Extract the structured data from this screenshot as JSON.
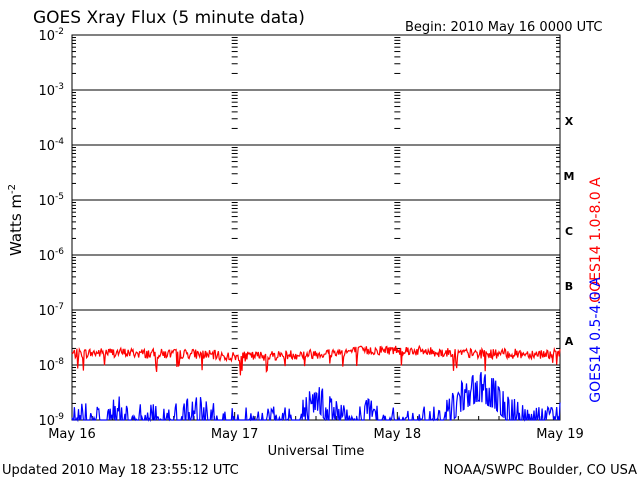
{
  "header": {
    "title": "GOES Xray Flux (5 minute data)",
    "begin": "Begin:  2010 May 16 0000 UTC"
  },
  "footer": {
    "updated": "Updated 2010 May 18 23:55:12 UTC",
    "source": "NOAA/SWPC Boulder, CO USA"
  },
  "chart_data": {
    "type": "line",
    "title": "GOES Xray Flux (5 minute data)",
    "xlabel": "Universal Time",
    "ylabel": "Watts m",
    "ylabel_exponent": "-2",
    "yscale": "log",
    "ylim": [
      1e-09,
      0.01
    ],
    "y_ticks": [
      {
        "base": "10",
        "exp": "-2",
        "value": 0.01
      },
      {
        "base": "10",
        "exp": "-3",
        "value": 0.001
      },
      {
        "base": "10",
        "exp": "-4",
        "value": 0.0001
      },
      {
        "base": "10",
        "exp": "-5",
        "value": 1e-05
      },
      {
        "base": "10",
        "exp": "-6",
        "value": 1e-06
      },
      {
        "base": "10",
        "exp": "-7",
        "value": 1e-07
      },
      {
        "base": "10",
        "exp": "-8",
        "value": 1e-08
      },
      {
        "base": "10",
        "exp": "-9",
        "value": 1e-09
      }
    ],
    "x_ticks": [
      "May 16",
      "May 17",
      "May 18",
      "May 19"
    ],
    "xlim_days": [
      16,
      19
    ],
    "flare_classes": [
      {
        "label": "X",
        "value": 0.0001
      },
      {
        "label": "M",
        "value": 1e-05
      },
      {
        "label": "C",
        "value": 1e-06
      },
      {
        "label": "B",
        "value": 1e-07
      },
      {
        "label": "A",
        "value": 1e-08
      }
    ],
    "grid": true,
    "series": [
      {
        "name": "GOES14 1.0-8.0 A",
        "color": "#ff0000",
        "x_day": [
          16.0,
          16.25,
          16.5,
          16.75,
          17.0,
          17.25,
          17.5,
          17.75,
          18.0,
          18.25,
          18.5,
          18.75,
          19.0
        ],
        "y": [
          1.6e-08,
          1.7e-08,
          1.6e-08,
          1.6e-08,
          1.4e-08,
          1.5e-08,
          1.6e-08,
          1.8e-08,
          1.9e-08,
          1.7e-08,
          1.6e-08,
          1.6e-08,
          1.6e-08
        ]
      },
      {
        "name": "GOES14 0.5-4.0 A",
        "color": "#0000ff",
        "x_day": [
          16.0,
          16.1,
          16.2,
          16.3,
          16.4,
          16.5,
          16.6,
          16.7,
          16.8,
          16.9,
          17.0,
          17.1,
          17.2,
          17.3,
          17.4,
          17.5,
          17.6,
          17.7,
          17.8,
          17.9,
          18.0,
          18.1,
          18.2,
          18.3,
          18.4,
          18.5,
          18.6,
          18.7,
          18.8,
          18.9,
          19.0
        ],
        "y": [
          1e-09,
          1.3e-09,
          1.1e-09,
          1.6e-09,
          1.2e-09,
          1.2e-09,
          1e-09,
          1.4e-09,
          1.5e-09,
          1.1e-09,
          1e-09,
          1e-09,
          1e-09,
          1e-09,
          1.1e-09,
          3.2e-09,
          1.4e-09,
          1e-09,
          1.6e-09,
          1.2e-09,
          1e-09,
          1e-09,
          1e-09,
          1.5e-09,
          3e-09,
          4.5e-09,
          3.2e-09,
          1.6e-09,
          1.1e-09,
          1e-09,
          1.3e-09
        ]
      }
    ]
  },
  "legend": {
    "red_label": "GOES14 1.0-8.0 A",
    "blue_label": "GOES14 0.5-4.0 A"
  }
}
